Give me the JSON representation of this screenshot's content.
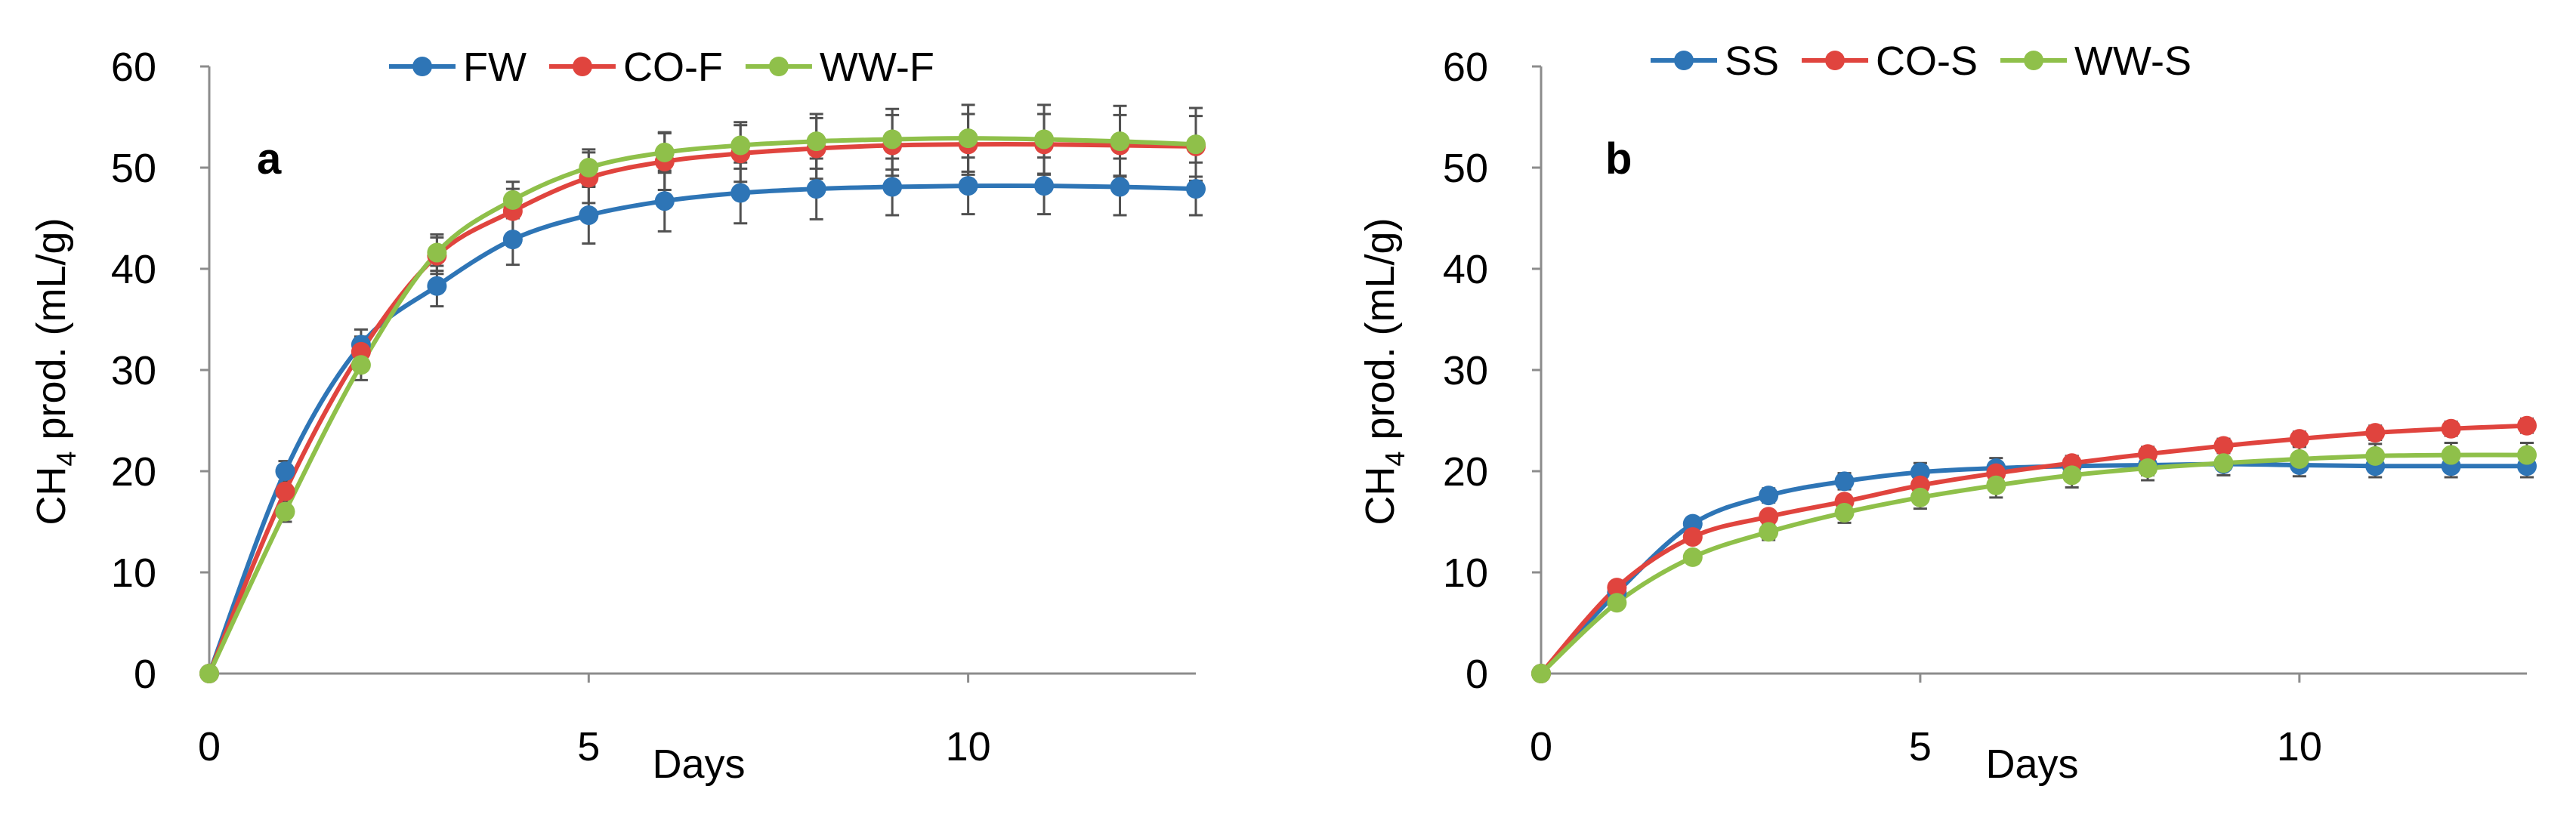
{
  "chart_data": [
    {
      "type": "line",
      "panel_label": "a",
      "xlabel": "Days",
      "ylabel_main": "CH",
      "ylabel_sub": "4",
      "ylabel_rest": " prod. (mL/g)",
      "xlim": [
        0,
        13
      ],
      "ylim": [
        0,
        60
      ],
      "x_ticks": [
        0,
        5,
        10
      ],
      "y_ticks": [
        0,
        10,
        20,
        30,
        40,
        50,
        60
      ],
      "grid": false,
      "legend_position": "top-center",
      "x": [
        0,
        1,
        2,
        3,
        4,
        5,
        6,
        7,
        8,
        9,
        10,
        11,
        12,
        13
      ],
      "series": [
        {
          "name": "FW",
          "color": "#2E75B6",
          "values": [
            0,
            20.0,
            32.5,
            38.3,
            42.9,
            45.3,
            46.7,
            47.5,
            47.9,
            48.1,
            48.2,
            48.2,
            48.1,
            47.9
          ],
          "errors": [
            0,
            1.0,
            1.5,
            2.0,
            2.5,
            2.8,
            3.0,
            3.0,
            3.0,
            2.8,
            2.8,
            2.8,
            2.8,
            2.6
          ]
        },
        {
          "name": "CO-F",
          "color": "#E0443E",
          "values": [
            0,
            18.0,
            31.8,
            41.3,
            45.7,
            49.0,
            50.6,
            51.4,
            51.9,
            52.2,
            52.3,
            52.3,
            52.2,
            52.1
          ],
          "errors": [
            0,
            1.0,
            1.5,
            1.8,
            2.2,
            2.5,
            2.8,
            2.8,
            3.0,
            3.0,
            3.0,
            3.0,
            3.0,
            3.0
          ]
        },
        {
          "name": "WW-F",
          "color": "#8FC04A",
          "values": [
            0,
            16.0,
            30.5,
            41.6,
            46.8,
            50.0,
            51.5,
            52.2,
            52.6,
            52.8,
            52.9,
            52.8,
            52.6,
            52.3
          ],
          "errors": [
            0,
            1.0,
            1.5,
            1.8,
            1.8,
            1.8,
            2.0,
            2.3,
            2.7,
            3.0,
            3.3,
            3.4,
            3.5,
            3.6
          ]
        }
      ]
    },
    {
      "type": "line",
      "panel_label": "b",
      "xlabel": "Days",
      "ylabel_main": "CH",
      "ylabel_sub": "4",
      "ylabel_rest": " prod. (mL/g)",
      "xlim": [
        0,
        13
      ],
      "ylim": [
        0,
        60
      ],
      "x_ticks": [
        0,
        5,
        10
      ],
      "y_ticks": [
        0,
        10,
        20,
        30,
        40,
        50,
        60
      ],
      "grid": false,
      "legend_position": "top-center",
      "x": [
        0,
        1,
        2,
        3,
        4,
        5,
        6,
        7,
        8,
        9,
        10,
        11,
        12,
        13
      ],
      "series": [
        {
          "name": "SS",
          "color": "#2E75B6",
          "values": [
            0,
            8.0,
            14.8,
            17.6,
            19.0,
            19.9,
            20.3,
            20.5,
            20.6,
            20.7,
            20.6,
            20.5,
            20.5,
            20.5
          ],
          "errors": [
            0,
            0.4,
            0.6,
            0.7,
            0.8,
            0.9,
            1.0,
            1.0,
            1.0,
            1.1,
            1.1,
            1.1,
            1.1,
            1.1
          ]
        },
        {
          "name": "CO-S",
          "color": "#E0443E",
          "values": [
            0,
            8.5,
            13.5,
            15.5,
            17.0,
            18.6,
            19.8,
            20.8,
            21.7,
            22.5,
            23.2,
            23.8,
            24.2,
            24.5
          ],
          "errors": [
            0,
            0.4,
            0.5,
            0.6,
            0.6,
            0.6,
            0.7,
            0.7,
            0.7,
            0.7,
            0.7,
            0.7,
            0.7,
            0.7
          ]
        },
        {
          "name": "WW-S",
          "color": "#8FC04A",
          "values": [
            0,
            7.0,
            11.5,
            14.0,
            15.9,
            17.4,
            18.6,
            19.6,
            20.3,
            20.8,
            21.2,
            21.5,
            21.6,
            21.6
          ],
          "errors": [
            0,
            0.4,
            0.6,
            0.8,
            1.0,
            1.1,
            1.2,
            1.2,
            1.2,
            1.2,
            1.2,
            1.2,
            1.2,
            1.2
          ]
        }
      ]
    }
  ]
}
